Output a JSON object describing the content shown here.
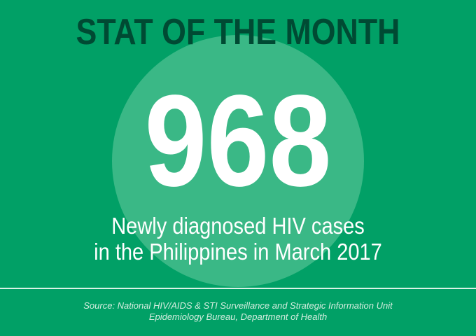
{
  "heading": "STAT OF THE MONTH",
  "stat_value": "968",
  "caption": {
    "line1": "Newly diagnosed HIV cases",
    "line2": "in the Philippines in March 2017"
  },
  "source": {
    "line1": "Source: National HIV/AIDS & STI Surveillance and Strategic Information Unit",
    "line2": "Epidemiology Bureau, Department of Health"
  },
  "colors": {
    "background": "#01a066",
    "circle": "#3ab886",
    "heading": "#004a33",
    "text": "#ffffff"
  }
}
